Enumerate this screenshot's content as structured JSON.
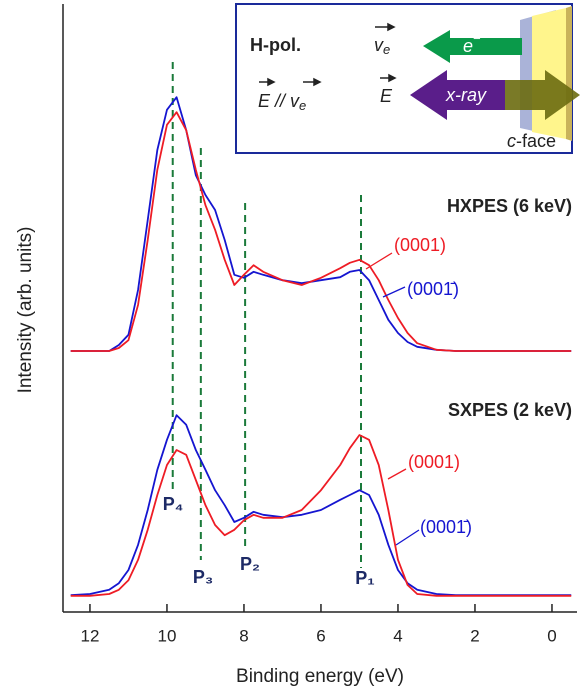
{
  "chart_data": {
    "type": "line",
    "x_label": "Binding energy (eV)",
    "y_label": "Intensity (arb. units)",
    "xlim": [
      12.7,
      -0.65
    ],
    "xticks": [
      12,
      10,
      8,
      6,
      4,
      2,
      0
    ],
    "ylim": [
      0,
      101
    ],
    "x": [
      12.5,
      12,
      11.5,
      11.25,
      11,
      10.75,
      10.5,
      10.25,
      10,
      9.75,
      9.5,
      9.25,
      9,
      8.75,
      8.5,
      8.25,
      8,
      7.75,
      7.5,
      7,
      6.5,
      6,
      5.5,
      5.25,
      5,
      4.75,
      4.5,
      4.25,
      4,
      3.75,
      3.5,
      3,
      2.5,
      2,
      1,
      0,
      -0.5
    ],
    "series": [
      {
        "name": "(0001̄)",
        "color": "#1515d0",
        "values": [
          43.5,
          43.5,
          43.5,
          44.5,
          46.2,
          53.7,
          65.3,
          77,
          83.7,
          85.8,
          80.3,
          72.8,
          69.5,
          67,
          62,
          56.2,
          55.7,
          56.7,
          56.2,
          55.3,
          54.8,
          55.3,
          55.8,
          56.7,
          57,
          55.3,
          52,
          48.7,
          46.5,
          45,
          44.2,
          43.7,
          43.5,
          43.5,
          43.5,
          43.5,
          43.5
        ]
      },
      {
        "name": "(0001)",
        "color": "#ee1c25",
        "values": [
          43.5,
          43.5,
          43.5,
          44,
          45.3,
          51.2,
          62,
          73.7,
          81.2,
          83.3,
          80.3,
          73.7,
          67.8,
          63.7,
          58.7,
          54.5,
          56.2,
          57.8,
          56.7,
          55.3,
          54.5,
          55.7,
          57.3,
          58.2,
          58.7,
          57.8,
          55.3,
          52,
          49,
          46.5,
          44.8,
          43.7,
          43.5,
          43.5,
          43.5,
          43.5,
          43.5
        ]
      },
      {
        "name": "(0001̄)",
        "color": "#1515d0",
        "values": [
          2.8,
          3,
          3.7,
          4.8,
          7,
          11.2,
          17,
          23.7,
          28.7,
          32.8,
          31.2,
          27,
          23.7,
          20.3,
          17.8,
          15,
          15.7,
          16.7,
          16.2,
          15.8,
          16.2,
          17,
          18.7,
          19.5,
          20.3,
          19.5,
          16.2,
          11.2,
          7,
          4.8,
          3.7,
          3,
          2.8,
          2.8,
          2.8,
          2.8,
          2.8
        ]
      },
      {
        "name": "(0001)",
        "color": "#ee1c25",
        "values": [
          2.7,
          2.7,
          3,
          3.7,
          5.3,
          8.7,
          13.7,
          19.5,
          24.5,
          27,
          26.2,
          22,
          17.8,
          14.5,
          12.8,
          13.7,
          15.3,
          16.2,
          15.7,
          15.7,
          17,
          20.3,
          24.5,
          27.3,
          29.5,
          28.7,
          24.5,
          17,
          8.7,
          4.5,
          3,
          2.7,
          2.7,
          2.7,
          2.7,
          2.7,
          2.7
        ]
      }
    ],
    "annotations": [
      "HXPES (6 keV)",
      "SXPES (2 keV)"
    ],
    "peaks": [
      {
        "label": "P₄",
        "x": 9.85
      },
      {
        "label": "P₃",
        "x": 9.12
      },
      {
        "label": "P₂",
        "x": 7.97
      },
      {
        "label": "P₁",
        "x": 4.96
      }
    ],
    "peak_color": "#1a7a3a",
    "inset": {
      "polarization": "H-pol.",
      "field": "E",
      "parallel": " // ",
      "velocity": "v",
      "velocity_sub": "e",
      "electron": "e",
      "electron_sup": "−",
      "xray": "x-ray",
      "face_italic": "c",
      "face": "-face"
    }
  }
}
